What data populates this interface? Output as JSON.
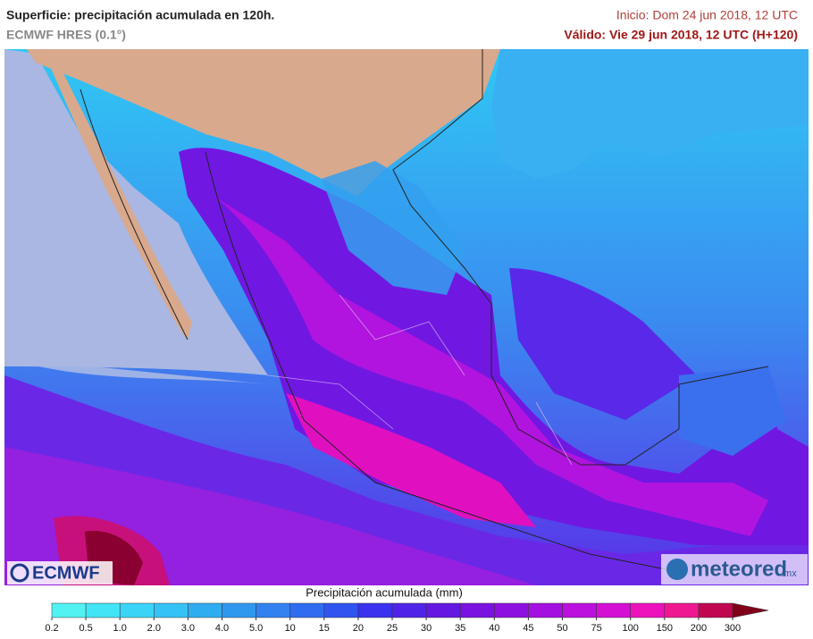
{
  "header": {
    "title": "Superficie: precipitación acumulada en 120h.",
    "subtitle": "ECMWF HRES (0.1°)",
    "init": "Inicio: Dom 24 jun 2018, 12 UTC",
    "valid": "Válido: Vie 29 jun 2018, 12 UTC (H+120)"
  },
  "logos": {
    "left": "ECMWF",
    "right": "meteored",
    "right_suffix": ".mx"
  },
  "legend": {
    "label": "Precipitación acumulada (mm)",
    "ticks": [
      0.2,
      0.5,
      {
        "value": 1,
        "label": "1.0"
      },
      {
        "value": 2,
        "label": "2.0"
      },
      {
        "value": 3,
        "label": "3.0"
      },
      {
        "value": 4,
        "label": "4.0"
      },
      {
        "value": 5,
        "label": "5.0"
      },
      10,
      15,
      20,
      25,
      30,
      35,
      40,
      45,
      50,
      75,
      100,
      150,
      200,
      300
    ],
    "colors": [
      "#52f2f2",
      "#43e4f6",
      "#3ad4f6",
      "#35c2f4",
      "#30adf0",
      "#2f98ee",
      "#3182f0",
      "#306cf0",
      "#3054f0",
      "#3a32ee",
      "#5024e8",
      "#6418e2",
      "#7a12e0",
      "#8e10e0",
      "#a410e0",
      "#bc10de",
      "#d410d4",
      "#ec12bc",
      "#f01890",
      "#c00850",
      "#80001a"
    ]
  }
}
